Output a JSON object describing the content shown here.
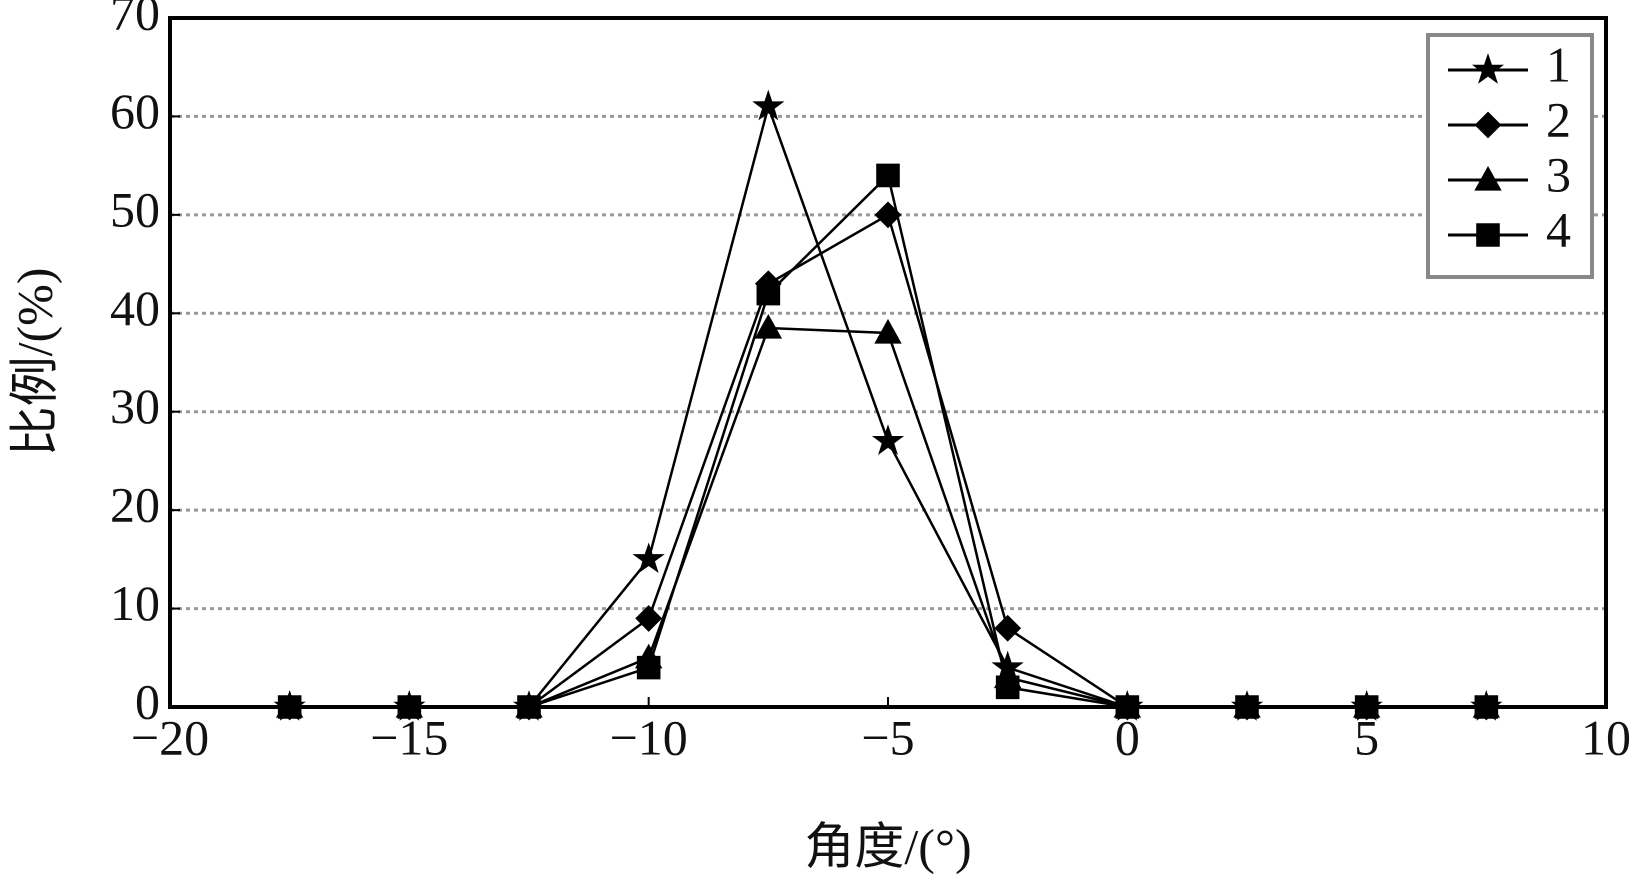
{
  "chart_data": {
    "type": "line",
    "xlabel": "角度/(°)",
    "ylabel": "比例/(%)",
    "x": [
      -17.5,
      -15,
      -12.5,
      -10,
      -7.5,
      -5,
      -2.5,
      0,
      2.5,
      5,
      7.5
    ],
    "series": [
      {
        "name": "1",
        "color": "#000000",
        "marker": "star",
        "values": [
          0,
          0,
          0,
          15,
          61,
          27,
          4,
          0,
          0,
          0,
          0
        ]
      },
      {
        "name": "2",
        "color": "#000000",
        "marker": "diamond",
        "values": [
          0,
          0,
          0,
          9,
          43,
          50,
          8,
          0,
          0,
          0,
          0
        ]
      },
      {
        "name": "3",
        "color": "#000000",
        "marker": "triangle",
        "values": [
          0,
          0,
          0,
          5,
          38.5,
          38,
          3,
          0,
          0,
          0,
          0
        ]
      },
      {
        "name": "4",
        "color": "#000000",
        "marker": "square",
        "values": [
          0,
          0,
          0,
          4,
          42,
          54,
          2,
          0,
          0,
          0,
          0
        ]
      }
    ],
    "xlim": [
      -20,
      10
    ],
    "xticks": [
      {
        "value": -20,
        "label": "−20"
      },
      {
        "value": -15,
        "label": "−15"
      },
      {
        "value": -10,
        "label": "−10"
      },
      {
        "value": -5,
        "label": "−5"
      },
      0,
      5,
      10
    ],
    "ylim": [
      0,
      70
    ],
    "yticks": [
      0,
      10,
      20,
      30,
      40,
      50,
      60,
      70
    ],
    "grid": true,
    "legend": "upper right"
  }
}
